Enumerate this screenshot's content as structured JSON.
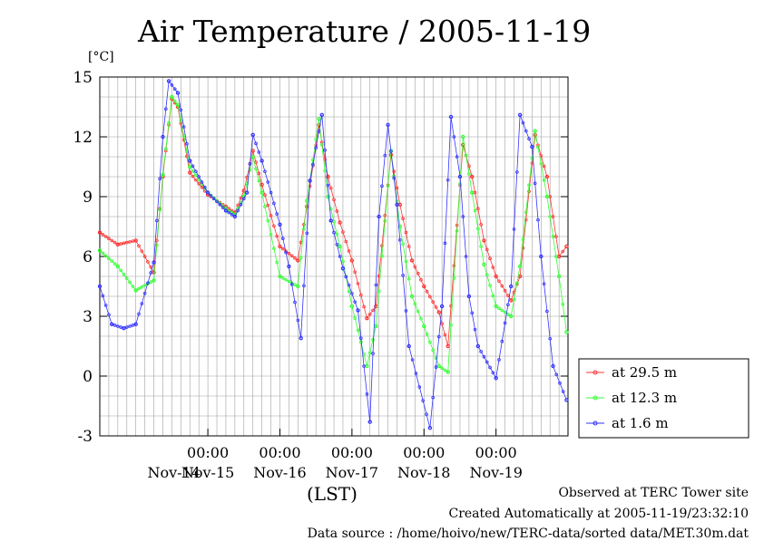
{
  "title": "Air Temperature / 2005-11-19",
  "unit_label": "[°C]",
  "xaxis_label": "(LST)",
  "footer": {
    "line1": "Observed at TERC Tower site",
    "line2": "Created Automatically at 2005-11-19/23:32:10",
    "line3": "Data source : /home/hoivo/new/TERC-data/sorted  data/MET.30m.dat"
  },
  "colors": {
    "series1": "#ff3333",
    "series2": "#33ff33",
    "series3": "#3333ff",
    "grid": "#a0a0a0"
  },
  "chart_data": {
    "type": "line",
    "title": "Air Temperature / 2005-11-19",
    "ylabel": "[°C]",
    "xlabel": "(LST)",
    "ylim": [
      -3,
      15
    ],
    "yticks": [
      -3,
      0,
      3,
      6,
      9,
      12,
      15
    ],
    "xlim": [
      "2005-11-13T12:00",
      "2005-11-19T23:59"
    ],
    "xticks": [
      {
        "time": "2005-11-15T00:00",
        "time_label": "00:00",
        "date_label": "Nov-15"
      },
      {
        "time": "2005-11-16T00:00",
        "time_label": "00:00",
        "date_label": "Nov-16"
      },
      {
        "time": "2005-11-17T00:00",
        "time_label": "00:00",
        "date_label": "Nov-17"
      },
      {
        "time": "2005-11-18T00:00",
        "time_label": "00:00",
        "date_label": "Nov-18"
      },
      {
        "time": "2005-11-19T00:00",
        "time_label": "00:00",
        "date_label": "Nov-19"
      }
    ],
    "first_date_label": {
      "time": "2005-11-14T00:00",
      "date_label": "Nov-14"
    },
    "grid": true,
    "legend_position": "right",
    "series": [
      {
        "name": "at 29.5 m",
        "color": "#ff3333",
        "x": [
          "2005-11-13T12:00",
          "2005-11-13T18:00",
          "2005-11-14T00:00",
          "2005-11-14T06:00",
          "2005-11-14T09:00",
          "2005-11-14T12:00",
          "2005-11-14T14:00",
          "2005-11-14T18:00",
          "2005-11-15T00:00",
          "2005-11-15T06:00",
          "2005-11-15T09:00",
          "2005-11-15T12:00",
          "2005-11-15T15:00",
          "2005-11-15T18:00",
          "2005-11-16T00:00",
          "2005-11-16T06:00",
          "2005-11-16T09:00",
          "2005-11-16T13:00",
          "2005-11-16T16:00",
          "2005-11-16T20:00",
          "2005-11-17T00:00",
          "2005-11-17T05:00",
          "2005-11-17T08:00",
          "2005-11-17T13:00",
          "2005-11-17T16:00",
          "2005-11-17T20:00",
          "2005-11-18T00:00",
          "2005-11-18T05:00",
          "2005-11-18T08:00",
          "2005-11-18T13:00",
          "2005-11-18T16:00",
          "2005-11-18T20:00",
          "2005-11-19T00:00",
          "2005-11-19T05:00",
          "2005-11-19T08:00",
          "2005-11-19T13:00",
          "2005-11-19T17:00",
          "2005-11-19T21:00",
          "2005-11-19T23:30"
        ],
        "values": [
          7.2,
          6.6,
          6.8,
          5.2,
          10.0,
          13.9,
          13.5,
          10.2,
          9.1,
          8.5,
          8.2,
          9.3,
          11.3,
          9.6,
          6.5,
          5.8,
          8.5,
          12.6,
          10.0,
          7.7,
          5.8,
          2.9,
          3.5,
          11.1,
          8.6,
          5.8,
          4.5,
          3.2,
          1.5,
          11.6,
          10.0,
          6.8,
          5.0,
          3.8,
          5.0,
          12.1,
          10.0,
          6.0,
          6.5
        ]
      },
      {
        "name": "at 12.3 m",
        "color": "#33ff33",
        "x": [
          "2005-11-13T12:00",
          "2005-11-13T18:00",
          "2005-11-14T00:00",
          "2005-11-14T06:00",
          "2005-11-14T09:00",
          "2005-11-14T12:00",
          "2005-11-14T14:00",
          "2005-11-14T18:00",
          "2005-11-15T00:00",
          "2005-11-15T06:00",
          "2005-11-15T09:00",
          "2005-11-15T12:00",
          "2005-11-15T15:00",
          "2005-11-15T18:00",
          "2005-11-16T00:00",
          "2005-11-16T06:00",
          "2005-11-16T09:00",
          "2005-11-16T13:00",
          "2005-11-16T16:00",
          "2005-11-16T20:00",
          "2005-11-17T00:00",
          "2005-11-17T05:00",
          "2005-11-17T08:00",
          "2005-11-17T13:00",
          "2005-11-17T16:00",
          "2005-11-17T20:00",
          "2005-11-18T00:00",
          "2005-11-18T05:00",
          "2005-11-18T08:00",
          "2005-11-18T13:00",
          "2005-11-18T16:00",
          "2005-11-18T20:00",
          "2005-11-19T00:00",
          "2005-11-19T05:00",
          "2005-11-19T08:00",
          "2005-11-19T13:00",
          "2005-11-19T17:00",
          "2005-11-19T21:00",
          "2005-11-19T23:30"
        ],
        "values": [
          6.3,
          5.5,
          4.3,
          4.8,
          10.1,
          14.0,
          13.6,
          10.5,
          9.2,
          8.4,
          8.1,
          9.0,
          11.0,
          9.2,
          5.0,
          4.5,
          8.8,
          12.9,
          9.0,
          6.5,
          3.5,
          0.5,
          2.5,
          11.3,
          7.5,
          4.0,
          2.5,
          0.5,
          0.2,
          12.0,
          9.2,
          5.6,
          3.5,
          3.0,
          5.5,
          12.3,
          9.0,
          5.0,
          2.2
        ]
      },
      {
        "name": "at 1.6 m",
        "color": "#3333ff",
        "x": [
          "2005-11-13T12:00",
          "2005-11-13T16:00",
          "2005-11-13T20:00",
          "2005-11-14T00:00",
          "2005-11-14T06:00",
          "2005-11-14T09:00",
          "2005-11-14T11:00",
          "2005-11-14T14:00",
          "2005-11-14T18:00",
          "2005-11-15T00:00",
          "2005-11-15T06:00",
          "2005-11-15T09:00",
          "2005-11-15T13:00",
          "2005-11-15T15:00",
          "2005-11-15T18:00",
          "2005-11-16T00:00",
          "2005-11-16T03:00",
          "2005-11-16T07:00",
          "2005-11-16T10:00",
          "2005-11-16T14:00",
          "2005-11-16T17:00",
          "2005-11-16T21:00",
          "2005-11-17T02:00",
          "2005-11-17T06:00",
          "2005-11-17T09:00",
          "2005-11-17T12:00",
          "2005-11-17T15:00",
          "2005-11-17T19:00",
          "2005-11-18T02:00",
          "2005-11-18T06:00",
          "2005-11-18T09:00",
          "2005-11-18T12:00",
          "2005-11-18T15:00",
          "2005-11-18T18:00",
          "2005-11-19T00:00",
          "2005-11-19T05:00",
          "2005-11-19T08:00",
          "2005-11-19T12:00",
          "2005-11-19T15:00",
          "2005-11-19T19:00",
          "2005-11-19T23:30"
        ],
        "values": [
          4.5,
          2.6,
          2.4,
          2.6,
          5.7,
          12.0,
          14.8,
          14.2,
          10.8,
          9.2,
          8.3,
          8.0,
          9.2,
          12.1,
          10.8,
          7.6,
          5.5,
          1.9,
          9.8,
          13.1,
          7.8,
          5.4,
          3.3,
          -2.3,
          8.0,
          12.6,
          8.6,
          1.5,
          -2.6,
          3.5,
          13.0,
          10.0,
          4.0,
          1.5,
          -0.1,
          4.5,
          13.1,
          11.5,
          6.0,
          0.5,
          -1.2
        ]
      }
    ]
  }
}
